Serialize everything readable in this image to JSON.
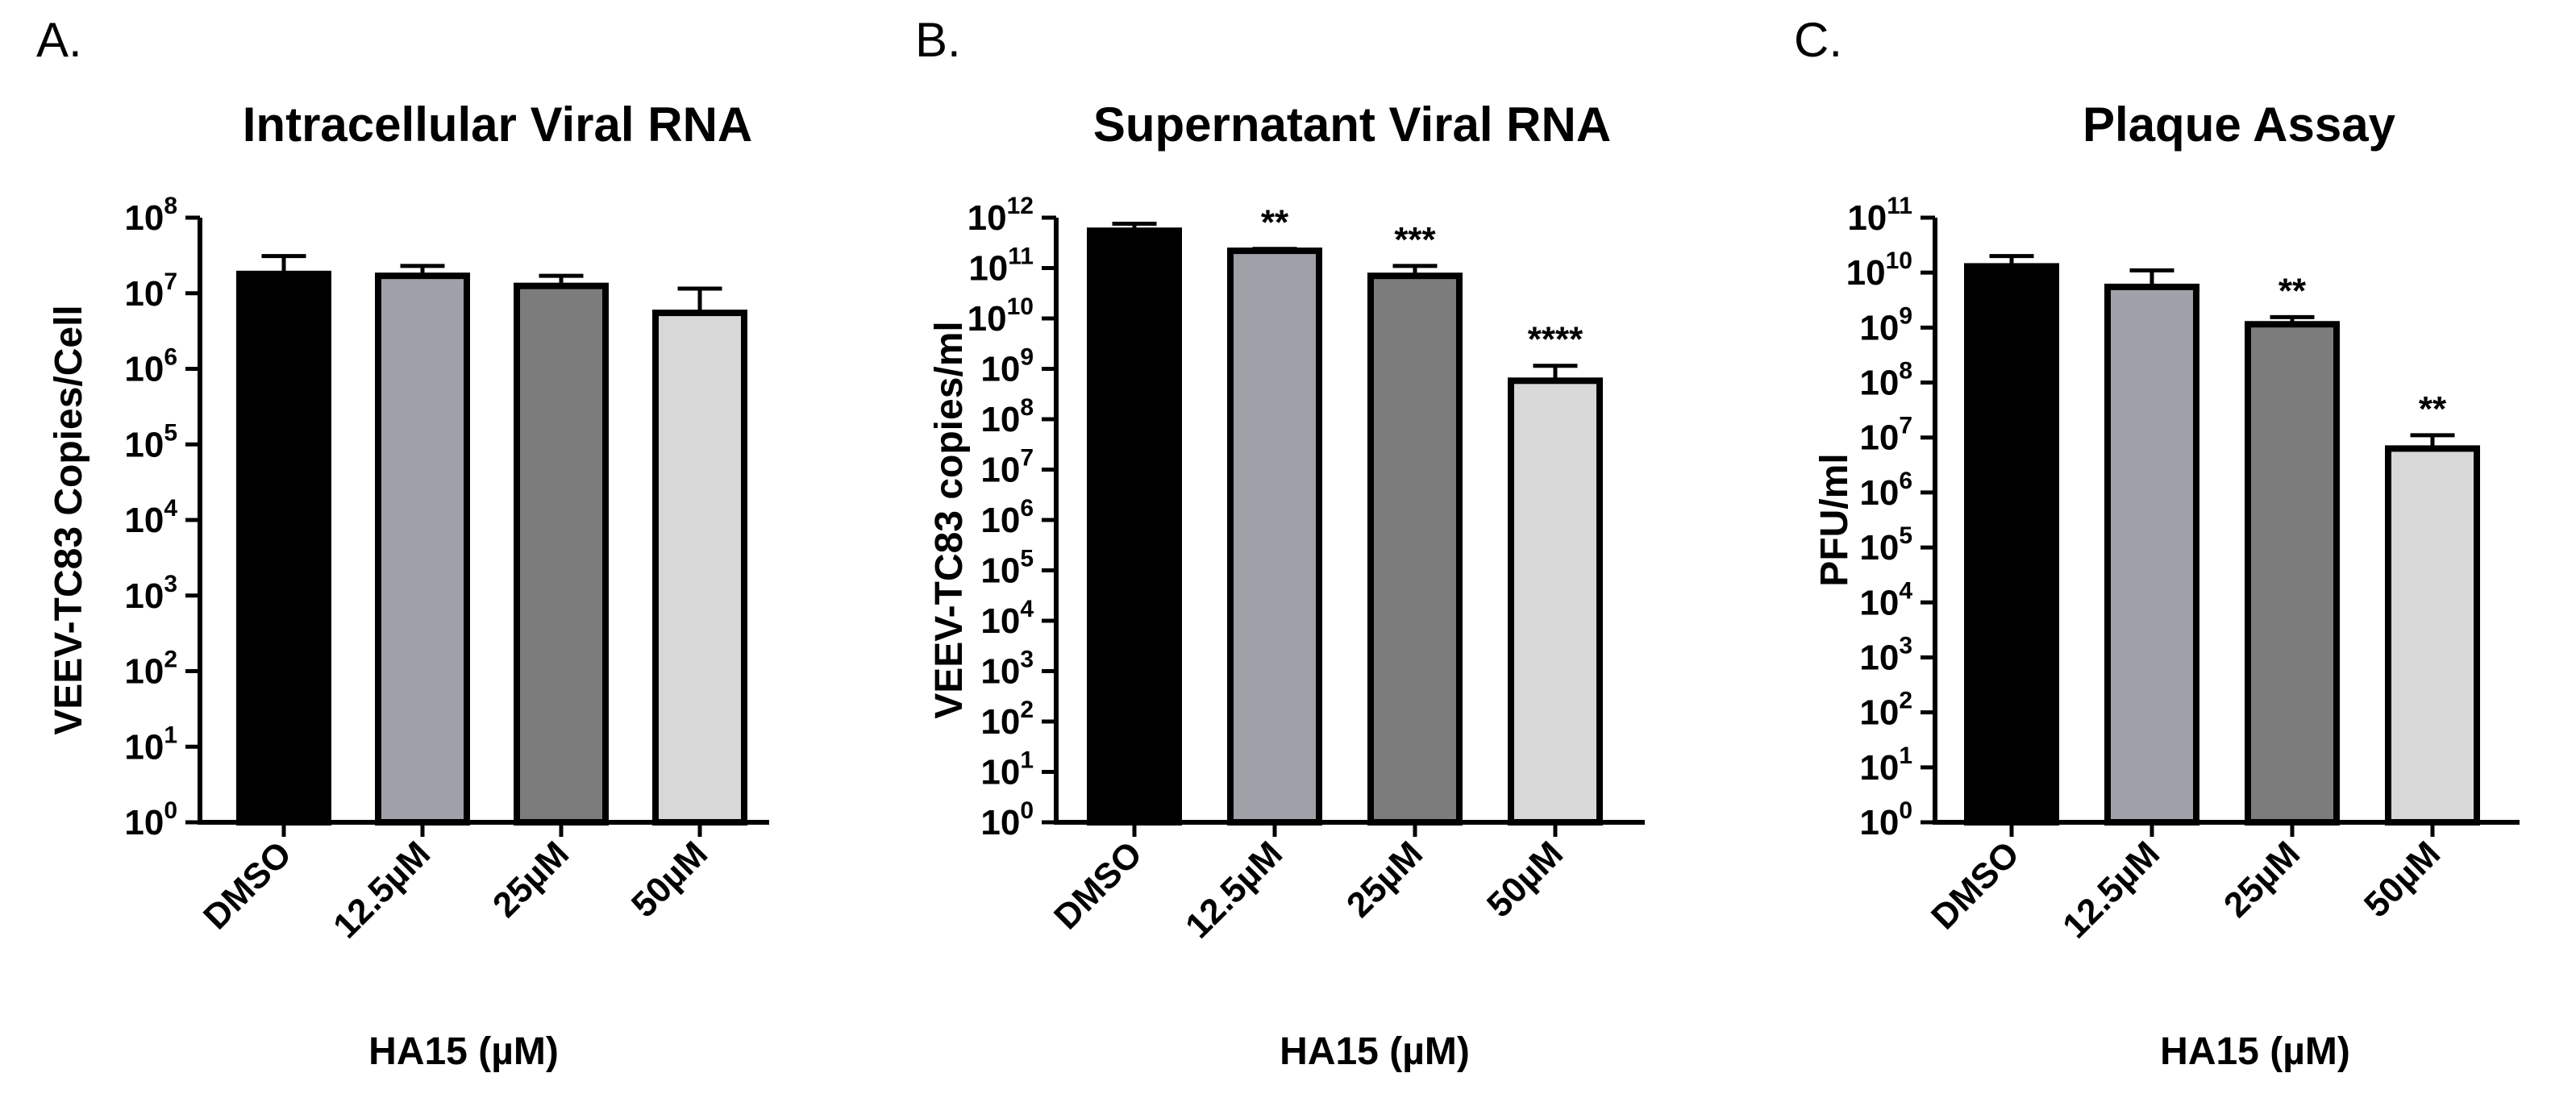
{
  "chart_data": [
    {
      "panel_label": "A.",
      "type": "bar",
      "title": "Intracellular Viral RNA",
      "xlabel": "HA15 (µM)",
      "ylabel": "VEEV-TC83 Copies/Cell",
      "yscale": "log",
      "ylim": [
        1,
        100000000
      ],
      "ytick_exponents": [
        0,
        1,
        2,
        3,
        4,
        5,
        6,
        7,
        8
      ],
      "categories": [
        "DMSO",
        "12.5µM",
        "25µM",
        "50µM"
      ],
      "values": [
        18000000,
        17000000,
        12500000,
        5500000
      ],
      "error_upper": [
        31000000,
        23000000,
        17000000,
        11500000
      ],
      "significance": [
        "",
        "",
        "",
        ""
      ],
      "bar_colors": [
        "#000000",
        "#a0a0a8",
        "#7c7c7c",
        "#d8d8d8"
      ]
    },
    {
      "panel_label": "B.",
      "type": "bar",
      "title": "Supernatant Viral RNA",
      "xlabel": "HA15 (µM)",
      "ylabel": "VEEV-TC83 copies/ml",
      "yscale": "log",
      "ylim": [
        1,
        1000000000000
      ],
      "ytick_exponents": [
        0,
        1,
        2,
        3,
        4,
        5,
        6,
        7,
        8,
        9,
        10,
        11,
        12
      ],
      "categories": [
        "DMSO",
        "12.5µM",
        "25µM",
        "50µM"
      ],
      "values": [
        550000000000,
        220000000000,
        70000000000,
        580000000
      ],
      "error_upper": [
        760000000000,
        240000000000,
        110000000000,
        1150000000
      ],
      "significance": [
        "",
        "**",
        "***",
        "****"
      ],
      "bar_colors": [
        "#000000",
        "#a0a0a8",
        "#7c7c7c",
        "#d8d8d8"
      ]
    },
    {
      "panel_label": "C.",
      "type": "bar",
      "title": "Plaque Assay",
      "xlabel": "HA15 (µM)",
      "ylabel": "PFU/ml",
      "yscale": "log",
      "ylim": [
        1,
        100000000000
      ],
      "ytick_exponents": [
        0,
        1,
        2,
        3,
        4,
        5,
        6,
        7,
        8,
        9,
        10,
        11
      ],
      "categories": [
        "DMSO",
        "12.5µM",
        "25µM",
        "50µM"
      ],
      "values": [
        13000000000,
        5500000000,
        1150000000,
        6300000
      ],
      "error_upper": [
        20000000000,
        11000000000,
        1550000000,
        11000000
      ],
      "significance": [
        "",
        "",
        "**",
        "**"
      ],
      "bar_colors": [
        "#000000",
        "#a0a0a8",
        "#7c7c7c",
        "#d8d8d8"
      ]
    }
  ]
}
